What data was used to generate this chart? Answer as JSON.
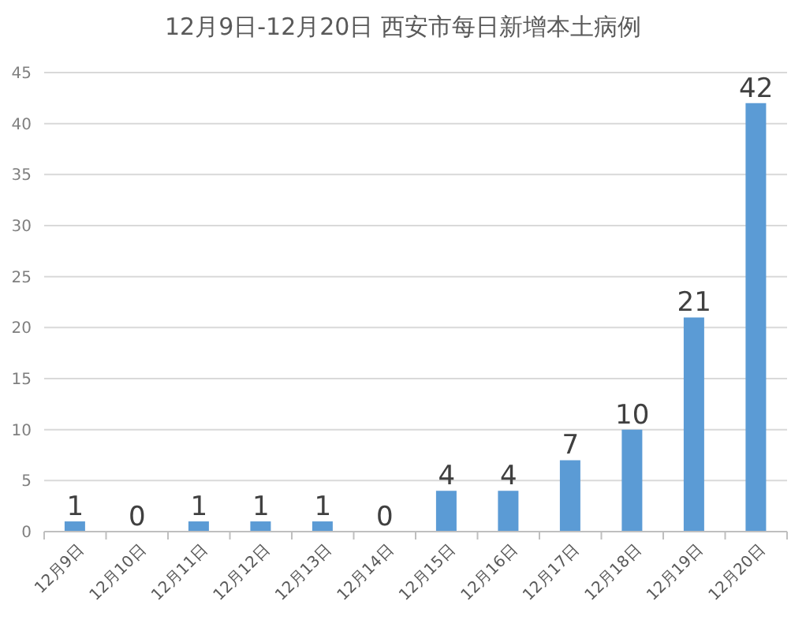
{
  "chart_data": {
    "type": "bar",
    "title": "12月9日-12月20日 西安市每日新增本土病例",
    "categories": [
      "12月9日",
      "12月10日",
      "12月11日",
      "12月12日",
      "12月13日",
      "12月14日",
      "12月15日",
      "12月16日",
      "12月17日",
      "12月18日",
      "12月19日",
      "12月20日"
    ],
    "values": [
      1,
      0,
      1,
      1,
      1,
      0,
      4,
      4,
      7,
      10,
      21,
      42
    ],
    "color": "#5b9bd5",
    "ylim": [
      0,
      45
    ],
    "yticks": [
      0,
      5,
      10,
      15,
      20,
      25,
      30,
      35,
      40,
      45
    ],
    "grid": "y",
    "data_labels": true
  }
}
